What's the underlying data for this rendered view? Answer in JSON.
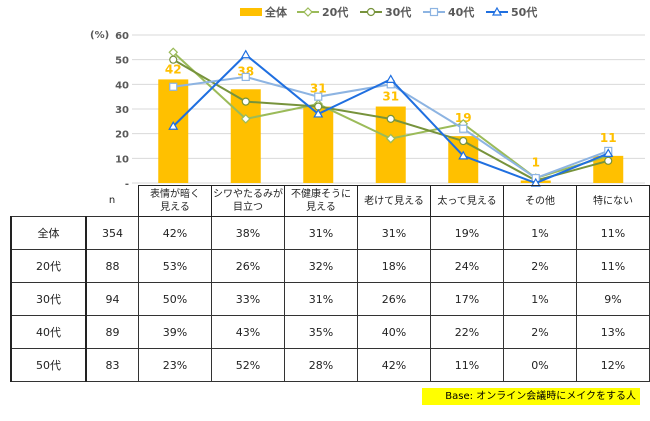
{
  "chart_data": {
    "type": "bar+line",
    "ylabel": "(%)",
    "ylim": [
      0,
      60
    ],
    "yticks": [
      "-",
      "10",
      "20",
      "30",
      "40",
      "50",
      "60"
    ],
    "categories": [
      "表情が暗く見える",
      "シワやたるみが目立つ",
      "不健康そうに見える",
      "老けて見える",
      "太って見える",
      "その他",
      "特にない"
    ],
    "category_lines": [
      [
        "表情が暗く",
        "見える"
      ],
      [
        "シワやたるみが",
        "目立つ"
      ],
      [
        "不健康そうに",
        "見える"
      ],
      [
        "老けて見える"
      ],
      [
        "太って見える"
      ],
      [
        "その他"
      ],
      [
        "特にない"
      ]
    ],
    "series": [
      {
        "name": "全体",
        "type": "bar",
        "color": "#FFC000",
        "n": "354",
        "values": [
          42,
          38,
          31,
          31,
          19,
          1,
          11
        ]
      },
      {
        "name": "20代",
        "type": "line",
        "marker": "diamond",
        "color": "#9BBB59",
        "n": "88",
        "values": [
          53,
          26,
          32,
          18,
          24,
          2,
          11
        ]
      },
      {
        "name": "30代",
        "type": "line",
        "marker": "circle",
        "color": "#77933C",
        "n": "94",
        "values": [
          50,
          33,
          31,
          26,
          17,
          1,
          9
        ]
      },
      {
        "name": "40代",
        "type": "line",
        "marker": "square",
        "color": "#8DB4E2",
        "n": "89",
        "values": [
          39,
          43,
          35,
          40,
          22,
          2,
          13
        ]
      },
      {
        "name": "50代",
        "type": "line",
        "marker": "triangle",
        "color": "#1F6FE0",
        "n": "83",
        "values": [
          23,
          52,
          28,
          42,
          11,
          0,
          12
        ]
      }
    ],
    "legend": "top",
    "grid": true
  },
  "table": {
    "n_header": "n",
    "rows": [
      {
        "label": "全体",
        "n": "354",
        "cells": [
          "42%",
          "38%",
          "31%",
          "31%",
          "19%",
          "1%",
          "11%"
        ]
      },
      {
        "label": "20代",
        "n": "88",
        "cells": [
          "53%",
          "26%",
          "32%",
          "18%",
          "24%",
          "2%",
          "11%"
        ]
      },
      {
        "label": "30代",
        "n": "94",
        "cells": [
          "50%",
          "33%",
          "31%",
          "26%",
          "17%",
          "1%",
          "9%"
        ]
      },
      {
        "label": "40代",
        "n": "89",
        "cells": [
          "39%",
          "43%",
          "35%",
          "40%",
          "22%",
          "2%",
          "13%"
        ]
      },
      {
        "label": "50代",
        "n": "83",
        "cells": [
          "23%",
          "52%",
          "28%",
          "42%",
          "11%",
          "0%",
          "12%"
        ]
      }
    ]
  },
  "base_note": "Base: オンライン会議時にメイクをする人"
}
